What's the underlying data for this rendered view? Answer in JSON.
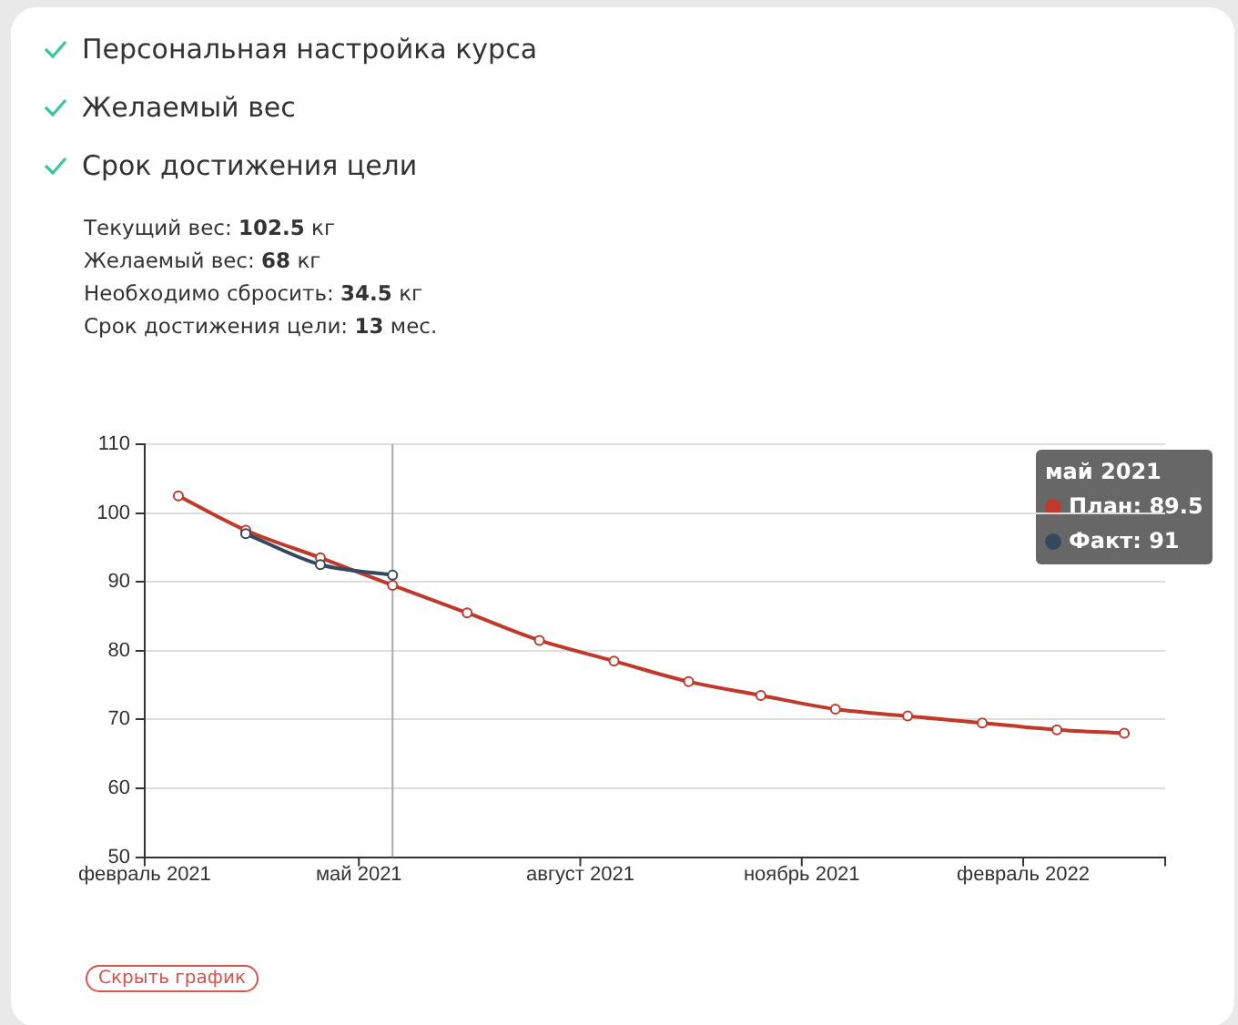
{
  "chart_data": {
    "type": "line",
    "annotations": [
      "Персональная настройка курса",
      "Желаемый вес",
      "Срок достижения цели",
      "Текущий вес: 102.5 кг",
      "Желаемый вес: 68 кг",
      "Необходимо сбросить: 34.5 кг",
      "Срок достижения цели: 13 мес.",
      "май 2021",
      "План: 89.5",
      "Факт: 91",
      "Скрыть график"
    ],
    "series": [
      {
        "color": "#c0392b",
        "x": [
          "2021-02-15",
          "2021-03-15",
          "2021-04-15",
          "2021-05-15",
          "2021-06-15",
          "2021-07-15",
          "2021-08-15",
          "2021-09-15",
          "2021-10-15",
          "2021-11-15",
          "2021-12-15",
          "2022-01-15",
          "2022-02-15",
          "2022-03-15"
        ],
        "values": [
          102.5,
          97.5,
          93.5,
          89.5,
          85.5,
          81.5,
          78.5,
          75.5,
          73.5,
          71.5,
          70.5,
          69.5,
          68.5,
          68
        ]
      },
      {
        "color": "#34495e",
        "x": [
          "2021-03-15",
          "2021-04-15",
          "2021-05-15"
        ],
        "values": [
          97,
          92.5,
          91
        ]
      }
    ],
    "xlim": [
      "2021-02",
      "2022-04"
    ],
    "xticks": [
      {
        "value": "2021-02",
        "label": "февраль 2021"
      },
      {
        "value": "2021-05",
        "label": "май 2021"
      },
      {
        "value": "2021-08",
        "label": "август 2021"
      },
      {
        "value": "2021-11",
        "label": "ноябрь 2021"
      },
      {
        "value": "2022-02",
        "label": "февраль 2022"
      }
    ],
    "ylim": [
      50,
      110
    ],
    "yticks": [
      50,
      60,
      70,
      80,
      90,
      100,
      110
    ],
    "grid": "y",
    "marker": "circle",
    "line_style": "solid",
    "ref_lines": [
      {
        "axis": "x",
        "value": "2021-05-15",
        "label": null,
        "color": "#aaaaaa"
      }
    ]
  }
}
